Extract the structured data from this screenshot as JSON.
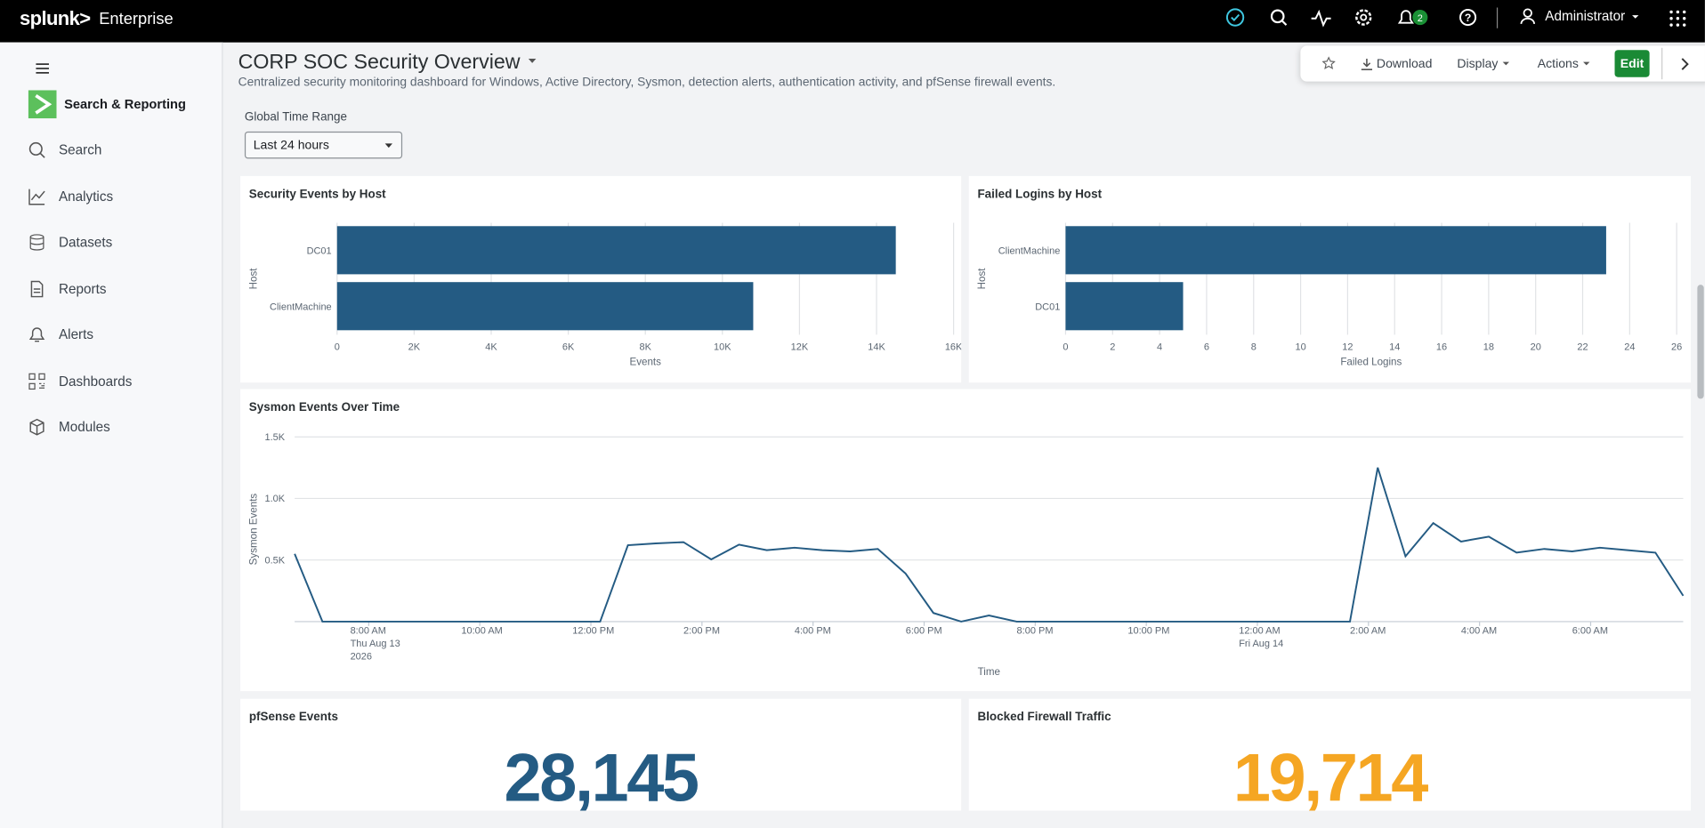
{
  "topbar": {
    "brand": "splunk>",
    "product": "Enterprise",
    "notifications": "2",
    "user": "Administrator"
  },
  "sidebar": {
    "app": "Search & Reporting",
    "items": [
      "Search",
      "Analytics",
      "Datasets",
      "Reports",
      "Alerts",
      "Dashboards",
      "Modules"
    ]
  },
  "dashboard": {
    "title": "CORP SOC Security Overview",
    "description": "Centralized security monitoring dashboard for Windows, Active Directory, Sysmon, detection alerts, authentication activity, and pfSense firewall events.",
    "toolbar": [
      "Download",
      "Display",
      "Actions",
      "Edit"
    ],
    "time_input": {
      "label": "Global Time Range",
      "value": "Last 24 hours"
    },
    "single_values": [
      {
        "title": "pfSense Events",
        "value": "28,145",
        "color": "#245b83"
      },
      {
        "title": "Blocked Firewall Traffic",
        "value": "19,714",
        "color": "#f5a623"
      }
    ]
  },
  "chart_data": [
    {
      "type": "bar",
      "orientation": "horizontal",
      "title": "Security Events by Host",
      "categories": [
        "DC01",
        "ClientMachine"
      ],
      "values": [
        14500,
        10800
      ],
      "color": "#245b83",
      "xlim": [
        0,
        16000
      ],
      "xticks": [
        0,
        {
          "value": 2000,
          "label": "2K"
        },
        {
          "value": 4000,
          "label": "4K"
        },
        {
          "value": 6000,
          "label": "6K"
        },
        {
          "value": 8000,
          "label": "8K"
        },
        {
          "value": 10000,
          "label": "10K"
        },
        {
          "value": 12000,
          "label": "12K"
        },
        {
          "value": 14000,
          "label": "14K"
        },
        {
          "value": 16000,
          "label": "16K"
        }
      ],
      "x_label": "Events",
      "y_label": "Host",
      "grid": true
    },
    {
      "type": "bar",
      "orientation": "horizontal",
      "title": "Failed Logins by Host",
      "categories": [
        "ClientMachine",
        "DC01"
      ],
      "values": [
        23,
        5
      ],
      "color": "#245b83",
      "xlim": [
        0,
        26
      ],
      "xticks": [
        0,
        2,
        4,
        6,
        8,
        10,
        12,
        14,
        16,
        18,
        20,
        22,
        24,
        26
      ],
      "x_label": "Failed Logins",
      "y_label": "Host",
      "grid": true
    },
    {
      "type": "line",
      "title": "Sysmon Events Over Time",
      "color": "#245b83",
      "x": [
        "2026-08-13T06:40",
        "2026-08-13T07:10",
        "2026-08-13T07:40",
        "2026-08-13T08:10",
        "2026-08-13T08:40",
        "2026-08-13T09:10",
        "2026-08-13T09:40",
        "2026-08-13T10:10",
        "2026-08-13T10:40",
        "2026-08-13T11:10",
        "2026-08-13T11:40",
        "2026-08-13T12:10",
        "2026-08-13T12:40",
        "2026-08-13T13:10",
        "2026-08-13T13:40",
        "2026-08-13T14:10",
        "2026-08-13T14:40",
        "2026-08-13T15:10",
        "2026-08-13T15:40",
        "2026-08-13T16:10",
        "2026-08-13T16:40",
        "2026-08-13T17:10",
        "2026-08-13T17:40",
        "2026-08-13T18:10",
        "2026-08-13T18:40",
        "2026-08-13T19:10",
        "2026-08-13T19:40",
        "2026-08-13T20:10",
        "2026-08-13T20:40",
        "2026-08-13T21:10",
        "2026-08-13T21:40",
        "2026-08-13T22:10",
        "2026-08-13T22:40",
        "2026-08-13T23:10",
        "2026-08-13T23:40",
        "2026-08-14T00:10",
        "2026-08-14T00:40",
        "2026-08-14T01:10",
        "2026-08-14T01:40",
        "2026-08-14T02:10",
        "2026-08-14T02:40",
        "2026-08-14T03:10",
        "2026-08-14T03:40",
        "2026-08-14T04:10",
        "2026-08-14T04:40",
        "2026-08-14T05:10",
        "2026-08-14T05:40",
        "2026-08-14T06:10",
        "2026-08-14T06:40",
        "2026-08-14T07:10",
        "2026-08-14T07:40"
      ],
      "values": [
        550,
        0,
        0,
        0,
        0,
        0,
        0,
        0,
        0,
        0,
        0,
        0,
        620,
        635,
        645,
        505,
        625,
        580,
        600,
        580,
        570,
        590,
        390,
        70,
        0,
        50,
        0,
        0,
        0,
        0,
        0,
        0,
        0,
        0,
        0,
        0,
        0,
        0,
        0,
        1250,
        530,
        800,
        650,
        690,
        560,
        590,
        570,
        600,
        580,
        560,
        210
      ],
      "xlim": [
        "2026-08-13T06:40",
        "2026-08-14T07:40"
      ],
      "xticks": [
        {
          "value": "2026-08-13T08:00",
          "label": "8:00 AM",
          "date": "Thu Aug 13",
          "year": "2026"
        },
        {
          "value": "2026-08-13T10:00",
          "label": "10:00 AM"
        },
        {
          "value": "2026-08-13T12:00",
          "label": "12:00 PM"
        },
        {
          "value": "2026-08-13T14:00",
          "label": "2:00 PM"
        },
        {
          "value": "2026-08-13T16:00",
          "label": "4:00 PM"
        },
        {
          "value": "2026-08-13T18:00",
          "label": "6:00 PM"
        },
        {
          "value": "2026-08-13T20:00",
          "label": "8:00 PM"
        },
        {
          "value": "2026-08-13T22:00",
          "label": "10:00 PM"
        },
        {
          "value": "2026-08-14T00:00",
          "label": "12:00 AM",
          "date": "Fri Aug 14"
        },
        {
          "value": "2026-08-14T02:00",
          "label": "2:00 AM"
        },
        {
          "value": "2026-08-14T04:00",
          "label": "4:00 AM"
        },
        {
          "value": "2026-08-14T06:00",
          "label": "6:00 AM"
        }
      ],
      "ylim": [
        0,
        1500
      ],
      "yticks": [
        {
          "value": 500,
          "label": "0.5K"
        },
        {
          "value": 1000,
          "label": "1.0K"
        },
        {
          "value": 1500,
          "label": "1.5K"
        }
      ],
      "x_label": "Time",
      "y_label": "Sysmon Events",
      "grid": true
    }
  ]
}
